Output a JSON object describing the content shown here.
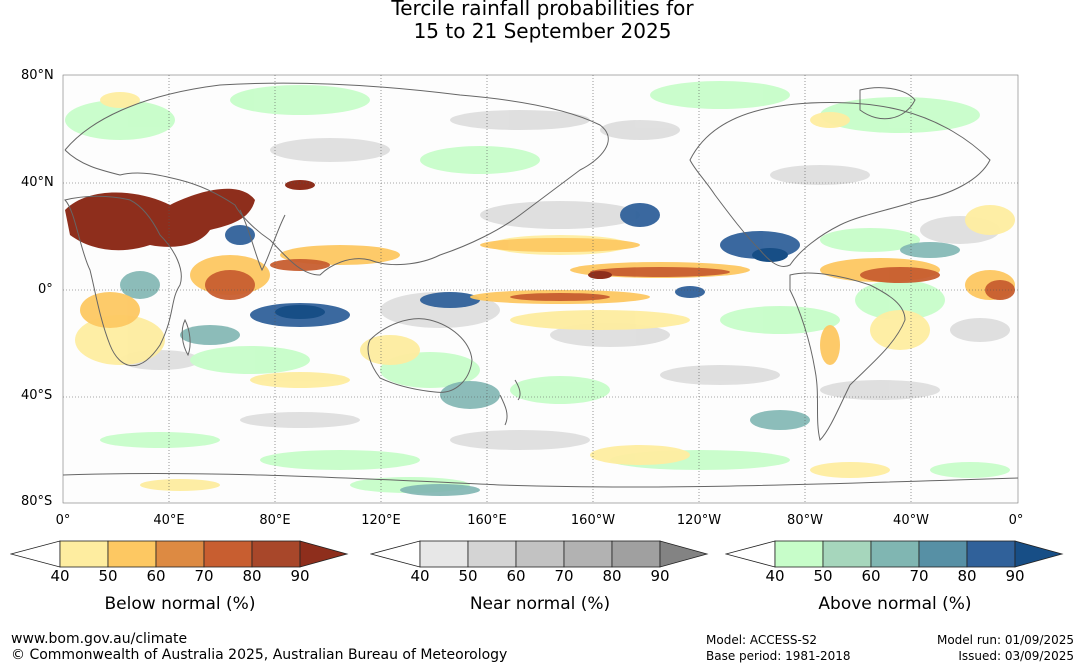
{
  "title": {
    "line1": "Tercile rainfall probabilities for",
    "line2": "15 to 21 September 2025"
  },
  "map": {
    "lat_labels": [
      "80°N",
      "40°N",
      "0°",
      "40°S",
      "80°S"
    ],
    "lon_labels": [
      "0°",
      "40°E",
      "80°E",
      "120°E",
      "160°E",
      "160°W",
      "120°W",
      "80°W",
      "40°W",
      "0°"
    ]
  },
  "legends": [
    {
      "title": "Below normal (%)",
      "ticks": [
        "40",
        "50",
        "60",
        "70",
        "80",
        "90"
      ],
      "colors": [
        "#ffffff",
        "#feeda0",
        "#fdc862",
        "#dd8a42",
        "#c85e30",
        "#a8472a",
        "#8e2e1c"
      ]
    },
    {
      "title": "Near normal (%)",
      "ticks": [
        "40",
        "50",
        "60",
        "70",
        "80",
        "90"
      ],
      "colors": [
        "#ffffff",
        "#e7e7e7",
        "#d4d4d4",
        "#c2c2c2",
        "#b2b2b2",
        "#a0a0a0",
        "#838383"
      ]
    },
    {
      "title": "Above normal (%)",
      "ticks": [
        "40",
        "50",
        "60",
        "70",
        "80",
        "90"
      ],
      "colors": [
        "#ffffff",
        "#c7fdc9",
        "#a6d6bc",
        "#80b6b2",
        "#5790a5",
        "#30619a",
        "#174e86"
      ]
    }
  ],
  "footer": {
    "website": "www.bom.gov.au/climate",
    "copyright": "© Commonwealth of Australia 2025, Australian Bureau of Meteorology",
    "model": "Model: ACCESS-S2",
    "base_period": "Base period: 1981-2018",
    "model_run": "Model run: 01/09/2025",
    "issued": "Issued: 03/09/2025"
  }
}
